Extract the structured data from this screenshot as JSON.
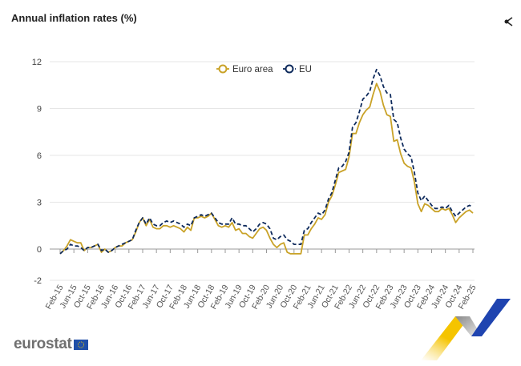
{
  "title": "Annual inflation rates (%)",
  "icons": {
    "share": "share-icon"
  },
  "logo": {
    "text": "eurostat",
    "flag": "eu-flag"
  },
  "chart_data": {
    "type": "line",
    "title": "Annual inflation rates (%)",
    "xlabel": "",
    "ylabel": "",
    "ylim": [
      -2,
      12
    ],
    "yticks": [
      -2,
      0,
      3,
      6,
      9,
      12
    ],
    "grid": true,
    "legend": "top-center",
    "x_start": "Feb-15",
    "x_end": "Feb-25",
    "x_frequency": "monthly",
    "xtick_labels": [
      "Feb-15",
      "Jun-15",
      "Oct-15",
      "Feb-16",
      "Jun-16",
      "Oct-16",
      "Feb-17",
      "Jun-17",
      "Oct-17",
      "Feb-18",
      "Jun-18",
      "Oct-18",
      "Feb-19",
      "Jun-19",
      "Oct-19",
      "Feb-20",
      "Jun-20",
      "Oct-20",
      "Feb-21",
      "Jun-21",
      "Oct-21",
      "Feb-22",
      "Jun-22",
      "Oct-22",
      "Feb-23",
      "Jun-23",
      "Oct-23",
      "Feb-24",
      "Jun-24",
      "Oct-24",
      "Feb-25"
    ],
    "series": [
      {
        "name": "Euro area",
        "color": "#c9a227",
        "style": "solid",
        "values": [
          -0.3,
          -0.1,
          0.2,
          0.6,
          0.5,
          0.4,
          0.4,
          -0.1,
          0.1,
          0.1,
          0.2,
          0.3,
          -0.2,
          0.0,
          -0.2,
          -0.1,
          0.1,
          0.2,
          0.2,
          0.4,
          0.5,
          0.6,
          1.1,
          1.7,
          2.0,
          1.5,
          1.9,
          1.4,
          1.3,
          1.3,
          1.5,
          1.5,
          1.4,
          1.5,
          1.4,
          1.3,
          1.1,
          1.4,
          1.2,
          2.0,
          2.0,
          2.1,
          2.0,
          2.1,
          2.3,
          1.9,
          1.5,
          1.4,
          1.5,
          1.4,
          1.7,
          1.2,
          1.3,
          1.0,
          1.0,
          0.8,
          0.7,
          1.0,
          1.3,
          1.4,
          1.2,
          0.7,
          0.3,
          0.1,
          0.3,
          0.4,
          -0.2,
          -0.3,
          -0.3,
          -0.3,
          -0.3,
          0.9,
          0.9,
          1.3,
          1.6,
          2.0,
          1.9,
          2.2,
          3.0,
          3.4,
          4.1,
          4.9,
          5.0,
          5.1,
          5.9,
          7.4,
          7.4,
          8.1,
          8.6,
          8.9,
          9.1,
          9.9,
          10.6,
          10.1,
          9.2,
          8.6,
          8.5,
          6.9,
          7.0,
          6.1,
          5.5,
          5.3,
          5.2,
          4.3,
          2.9,
          2.4,
          2.9,
          2.8,
          2.6,
          2.4,
          2.4,
          2.6,
          2.5,
          2.6,
          2.2,
          1.7,
          2.0,
          2.2,
          2.4,
          2.5,
          2.3
        ]
      },
      {
        "name": "EU",
        "color": "#0e2a5c",
        "style": "dashed",
        "values": [
          -0.3,
          -0.1,
          0.0,
          0.3,
          0.2,
          0.2,
          0.1,
          -0.1,
          0.1,
          0.1,
          0.2,
          0.3,
          -0.1,
          0.0,
          -0.2,
          -0.1,
          0.1,
          0.2,
          0.3,
          0.4,
          0.5,
          0.6,
          1.2,
          1.7,
          2.0,
          1.6,
          2.0,
          1.6,
          1.5,
          1.5,
          1.7,
          1.8,
          1.7,
          1.8,
          1.7,
          1.6,
          1.4,
          1.6,
          1.5,
          2.0,
          2.1,
          2.2,
          2.1,
          2.2,
          2.3,
          2.0,
          1.7,
          1.6,
          1.6,
          1.6,
          2.0,
          1.6,
          1.6,
          1.5,
          1.5,
          1.3,
          1.1,
          1.3,
          1.6,
          1.7,
          1.6,
          1.3,
          0.7,
          0.6,
          0.8,
          0.9,
          0.6,
          0.5,
          0.3,
          0.3,
          0.3,
          1.2,
          1.3,
          1.7,
          2.0,
          2.3,
          2.2,
          2.5,
          3.2,
          3.6,
          4.4,
          5.2,
          5.3,
          5.6,
          6.2,
          7.8,
          8.1,
          8.8,
          9.6,
          9.8,
          10.1,
          10.9,
          11.5,
          11.1,
          10.4,
          10.0,
          9.9,
          8.3,
          8.1,
          7.1,
          6.4,
          6.1,
          5.9,
          4.9,
          3.6,
          3.1,
          3.4,
          3.1,
          2.8,
          2.6,
          2.6,
          2.7,
          2.6,
          2.8,
          2.4,
          2.1,
          2.3,
          2.5,
          2.7,
          2.8,
          2.7
        ]
      }
    ]
  }
}
